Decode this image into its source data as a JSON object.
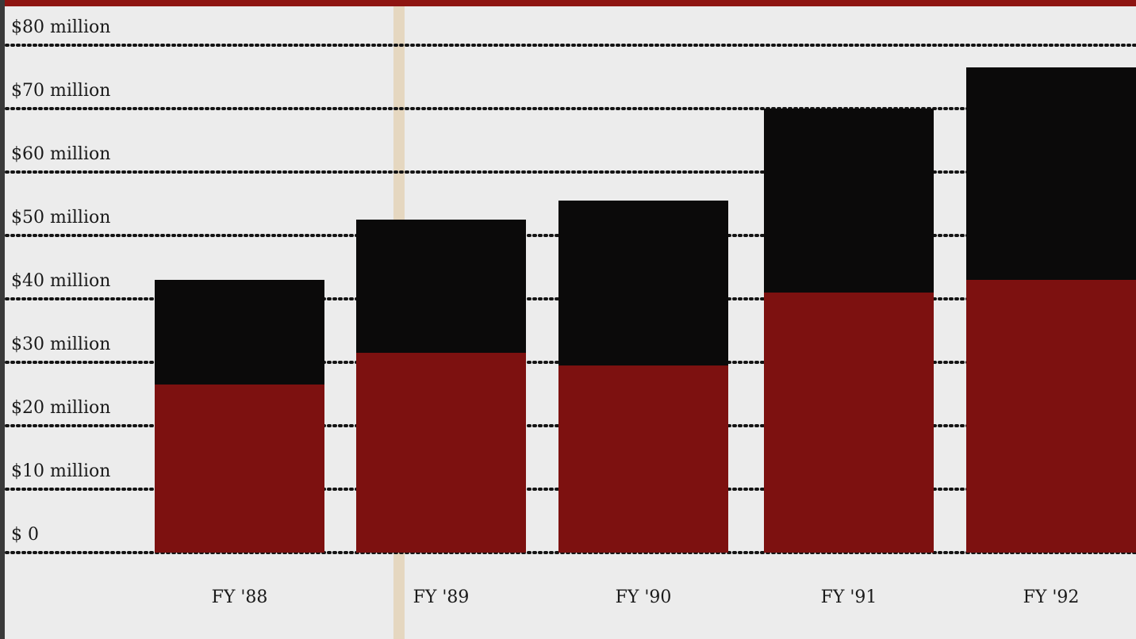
{
  "chart_data": {
    "type": "bar",
    "stacked": true,
    "categories": [
      "FY '88",
      "FY '89",
      "FY '90",
      "FY '91",
      "FY '92"
    ],
    "series": [
      {
        "color": "#7d1110",
        "values": [
          26.5,
          31.5,
          29.5,
          41,
          43
        ]
      },
      {
        "color": "#0b0a0a",
        "values": [
          16.5,
          21,
          26,
          29,
          33.5
        ]
      }
    ],
    "y_ticks": [
      "$ 0",
      "$10 million",
      "$20 million",
      "$30 million",
      "$40 million",
      "$50 million",
      "$60 million",
      "$70 million",
      "$80 million"
    ],
    "ylim": [
      0,
      80
    ],
    "grid": "dotted horizontal"
  }
}
